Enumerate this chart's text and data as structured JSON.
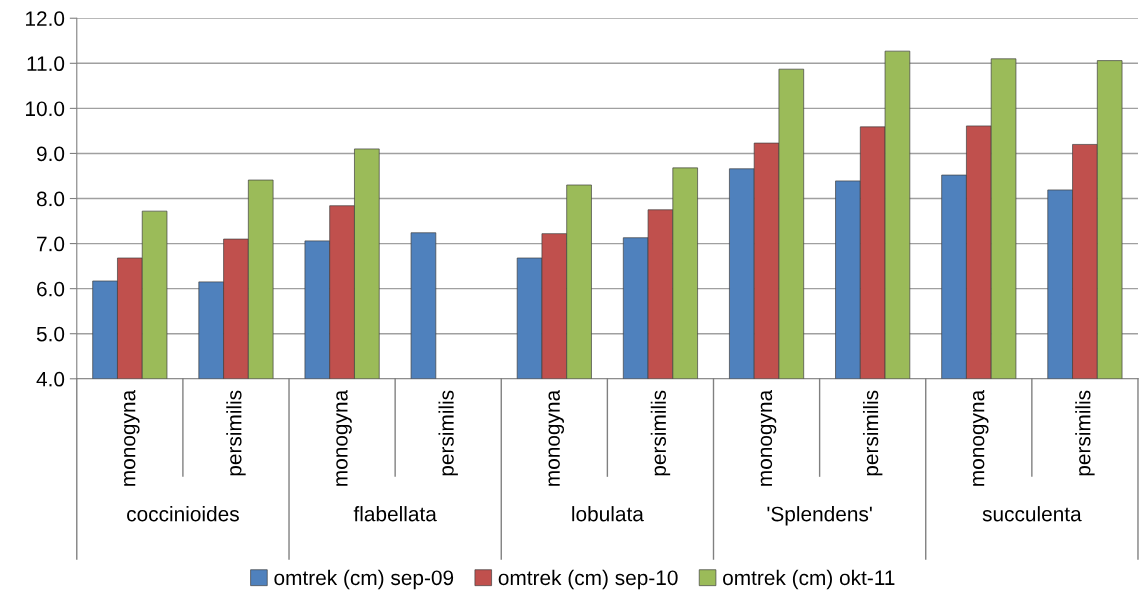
{
  "chart_data": {
    "type": "bar",
    "categories": [
      "monogyna",
      "persimilis",
      "monogyna",
      "persimilis",
      "monogyna",
      "persimilis",
      "monogyna",
      "persimilis",
      "monogyna",
      "persimilis"
    ],
    "annotations": [
      "coccinioides",
      "flabellata",
      "lobulata",
      "'Splendens'",
      "succulenta"
    ],
    "series": [
      {
        "name": "omtrek (cm) sep-09",
        "color": "#4f81bd",
        "values": [
          6.17,
          6.15,
          7.06,
          7.24,
          6.68,
          7.13,
          8.66,
          8.39,
          8.52,
          8.19
        ]
      },
      {
        "name": "omtrek (cm) sep-10",
        "color": "#c0504d",
        "values": [
          6.68,
          7.1,
          7.84,
          null,
          7.22,
          7.75,
          9.23,
          9.59,
          9.61,
          9.2
        ]
      },
      {
        "name": "omtrek (cm) okt-11",
        "color": "#9bbb59",
        "values": [
          7.72,
          8.41,
          9.1,
          null,
          8.3,
          8.68,
          10.87,
          11.27,
          11.1,
          11.06
        ]
      }
    ],
    "ylim": [
      4,
      12
    ],
    "yticks": [
      {
        "value": 4,
        "label": "4.0"
      },
      {
        "value": 5,
        "label": "5.0"
      },
      {
        "value": 6,
        "label": "6.0"
      },
      {
        "value": 7,
        "label": "7.0"
      },
      {
        "value": 8,
        "label": "8.0"
      },
      {
        "value": 9,
        "label": "9.0"
      },
      {
        "value": 10,
        "label": "10.0"
      },
      {
        "value": 11,
        "label": "11.0"
      },
      {
        "value": 12,
        "label": "12.0"
      }
    ],
    "grid": "y",
    "legend": "bottom"
  }
}
